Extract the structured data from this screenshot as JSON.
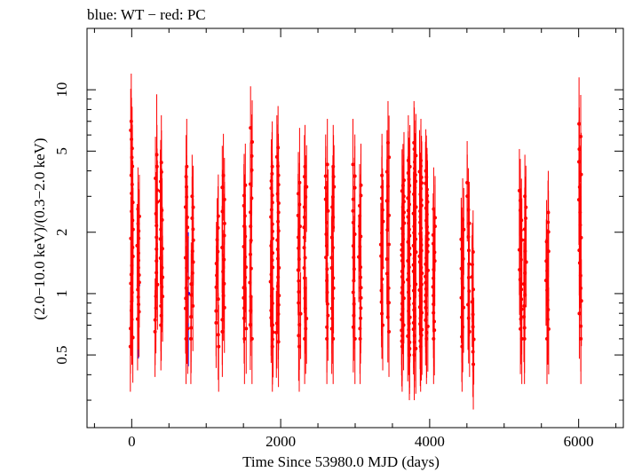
{
  "chart_data": {
    "type": "scatter",
    "title": "blue: WT − red: PC",
    "xlabel": "Time Since 53980.0 MJD (days)",
    "ylabel": "(2.0−10.0 keV)/(0.3−2.0 keV)",
    "xlim": [
      -600,
      6600
    ],
    "ylim": [
      0.22,
      20
    ],
    "yscale": "log",
    "grid": false,
    "x_ticks": [
      0,
      2000,
      4000,
      6000
    ],
    "x_tick_labels": [
      "0",
      "2000",
      "4000",
      "6000"
    ],
    "y_ticks": [
      0.5,
      1,
      2,
      5,
      10
    ],
    "y_tick_labels": [
      "0.5",
      "1",
      "2",
      "5",
      "10"
    ],
    "series": [
      {
        "name": "WT",
        "color": "#0000ff",
        "points": [
          {
            "x": 90,
            "y": 1.1,
            "ylo": 0.48,
            "yhi": 2.2
          },
          {
            "x": 760,
            "y": 1.0,
            "ylo": 0.44,
            "yhi": 2.0
          }
        ]
      },
      {
        "name": "PC",
        "color": "#ff0000",
        "epochs": [
          {
            "x": 0,
            "ymin": 0.55,
            "ymax": 7.0,
            "elo": 0.5,
            "ehi": 12.0,
            "n": 26
          },
          {
            "x": 90,
            "ymin": 0.75,
            "ymax": 2.6,
            "elo": 0.42,
            "ehi": 4.0,
            "n": 16
          },
          {
            "x": 330,
            "ymin": 0.65,
            "ymax": 4.8,
            "elo": 0.5,
            "ehi": 9.5,
            "n": 16
          },
          {
            "x": 400,
            "ymin": 0.7,
            "ymax": 4.4,
            "elo": 0.52,
            "ehi": 7.5,
            "n": 18
          },
          {
            "x": 740,
            "ymin": 0.6,
            "ymax": 4.2,
            "elo": 0.38,
            "ehi": 7.2,
            "n": 18
          },
          {
            "x": 810,
            "ymin": 0.6,
            "ymax": 3.0,
            "elo": 0.5,
            "ehi": 4.2,
            "n": 14
          },
          {
            "x": 1150,
            "ymin": 0.55,
            "ymax": 2.4,
            "elo": 0.45,
            "ehi": 3.8,
            "n": 12
          },
          {
            "x": 1230,
            "ymin": 0.65,
            "ymax": 3.8,
            "elo": 0.5,
            "ehi": 6.0,
            "n": 14
          },
          {
            "x": 1520,
            "ymin": 0.6,
            "ymax": 3.4,
            "elo": 0.5,
            "ehi": 5.0,
            "n": 16
          },
          {
            "x": 1600,
            "ymin": 0.6,
            "ymax": 6.5,
            "elo": 0.45,
            "ehi": 9.0,
            "n": 16
          },
          {
            "x": 1880,
            "ymin": 0.55,
            "ymax": 4.2,
            "elo": 0.43,
            "ehi": 7.0,
            "n": 26
          },
          {
            "x": 1960,
            "ymin": 0.58,
            "ymax": 5.2,
            "elo": 0.43,
            "ehi": 7.8,
            "n": 22
          },
          {
            "x": 2250,
            "ymin": 0.55,
            "ymax": 3.5,
            "elo": 0.43,
            "ehi": 6.5,
            "n": 16
          },
          {
            "x": 2330,
            "ymin": 0.6,
            "ymax": 4.2,
            "elo": 0.48,
            "ehi": 6.2,
            "n": 18
          },
          {
            "x": 2620,
            "ymin": 0.6,
            "ymax": 4.3,
            "elo": 0.45,
            "ehi": 7.2,
            "n": 16
          },
          {
            "x": 2700,
            "ymin": 0.6,
            "ymax": 4.2,
            "elo": 0.48,
            "ehi": 6.2,
            "n": 18
          },
          {
            "x": 2980,
            "ymin": 0.6,
            "ymax": 4.3,
            "elo": 0.45,
            "ehi": 7.2,
            "n": 16
          },
          {
            "x": 3060,
            "ymin": 0.6,
            "ymax": 3.4,
            "elo": 0.5,
            "ehi": 5.2,
            "n": 16
          },
          {
            "x": 3360,
            "ymin": 0.7,
            "ymax": 3.8,
            "elo": 0.55,
            "ehi": 5.5,
            "n": 14
          },
          {
            "x": 3440,
            "ymin": 0.65,
            "ymax": 5.5,
            "elo": 0.5,
            "ehi": 8.0,
            "n": 14
          },
          {
            "x": 3640,
            "ymin": 0.55,
            "ymax": 3.6,
            "elo": 0.43,
            "ehi": 6.2,
            "n": 32
          },
          {
            "x": 3720,
            "ymin": 0.5,
            "ymax": 4.5,
            "elo": 0.38,
            "ehi": 7.5,
            "n": 32
          },
          {
            "x": 3800,
            "ymin": 0.5,
            "ymax": 5.5,
            "elo": 0.34,
            "ehi": 8.8,
            "n": 34
          },
          {
            "x": 3880,
            "ymin": 0.55,
            "ymax": 4.5,
            "elo": 0.4,
            "ehi": 6.5,
            "n": 34
          },
          {
            "x": 3960,
            "ymin": 0.6,
            "ymax": 4.0,
            "elo": 0.45,
            "ehi": 6.0,
            "n": 28
          },
          {
            "x": 4060,
            "ymin": 0.6,
            "ymax": 2.6,
            "elo": 0.5,
            "ehi": 3.5,
            "n": 16
          },
          {
            "x": 4440,
            "ymin": 0.55,
            "ymax": 2.3,
            "elo": 0.38,
            "ehi": 3.5,
            "n": 14
          },
          {
            "x": 4520,
            "ymin": 0.65,
            "ymax": 3.5,
            "elo": 0.48,
            "ehi": 5.0,
            "n": 12
          },
          {
            "x": 4580,
            "ymin": 0.45,
            "ymax": 1.6,
            "elo": 0.35,
            "ehi": 2.4,
            "n": 10
          },
          {
            "x": 5220,
            "ymin": 0.6,
            "ymax": 3.2,
            "elo": 0.5,
            "ehi": 5.0,
            "n": 16
          },
          {
            "x": 5280,
            "ymin": 0.6,
            "ymax": 3.0,
            "elo": 0.5,
            "ehi": 4.6,
            "n": 14
          },
          {
            "x": 5580,
            "ymin": 0.6,
            "ymax": 2.5,
            "elo": 0.5,
            "ehi": 3.5,
            "n": 14
          },
          {
            "x": 6020,
            "ymin": 0.6,
            "ymax": 6.8,
            "elo": 0.5,
            "ehi": 11.5,
            "n": 18
          }
        ]
      }
    ]
  }
}
